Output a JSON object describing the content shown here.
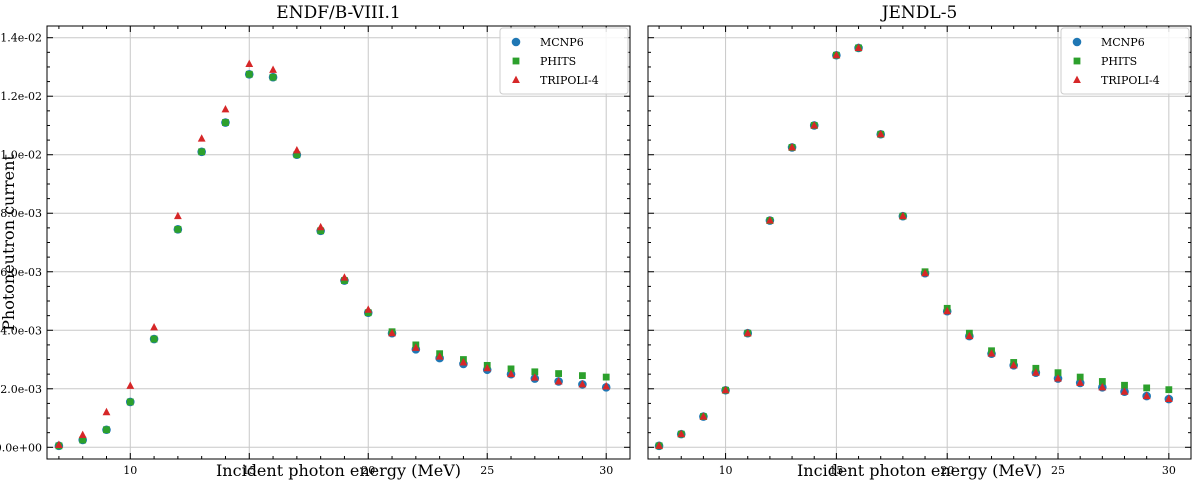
{
  "colors": {
    "MCNP6": "#1f77b4",
    "PHITS": "#2ca02c",
    "TRIPOLI-4": "#d62728"
  },
  "chart_data": [
    {
      "type": "scatter",
      "title": "ENDF/B-VIII.1",
      "xlabel": "Incident photon energy (MeV)",
      "ylabel": "Photoneutron current",
      "xlim": [
        6.5,
        31
      ],
      "ylim": [
        -0.0004,
        0.0144
      ],
      "xticks": [
        10,
        15,
        20,
        25,
        30
      ],
      "xtick_labels": [
        "10",
        "15",
        "20",
        "25",
        "30"
      ],
      "yticks": [
        0,
        0.002,
        0.004,
        0.006,
        0.008,
        0.01,
        0.012,
        0.014
      ],
      "ytick_labels": [
        "0.0e+00",
        "2.0e-03",
        "4.0e-03",
        "6.0e-03",
        "8.0e-03",
        "1.0e-02",
        "1.2e-02",
        "1.4e-02"
      ],
      "grid": true,
      "legend": "top-right",
      "x": [
        7,
        8,
        9,
        10,
        11,
        12,
        13,
        14,
        15,
        16,
        17,
        18,
        19,
        20,
        21,
        22,
        23,
        24,
        25,
        26,
        27,
        28,
        29,
        30
      ],
      "series": [
        {
          "name": "MCNP6",
          "marker": "circle",
          "values": [
            5e-05,
            0.00025,
            0.0006,
            0.00155,
            0.0037,
            0.00745,
            0.0101,
            0.0111,
            0.01275,
            0.01265,
            0.01,
            0.0074,
            0.0057,
            0.0046,
            0.0039,
            0.00335,
            0.00305,
            0.00285,
            0.00265,
            0.0025,
            0.00235,
            0.00225,
            0.00215,
            0.00205
          ]
        },
        {
          "name": "PHITS",
          "marker": "square",
          "values": [
            5e-05,
            0.00025,
            0.0006,
            0.00155,
            0.0037,
            0.00745,
            0.0101,
            0.0111,
            0.01275,
            0.01265,
            0.01,
            0.0074,
            0.0057,
            0.0046,
            0.00395,
            0.0035,
            0.0032,
            0.003,
            0.0028,
            0.00268,
            0.00258,
            0.00252,
            0.00245,
            0.0024
          ]
        },
        {
          "name": "TRIPOLI-4",
          "marker": "triangle",
          "values": [
            8e-05,
            0.00042,
            0.0012,
            0.0021,
            0.0041,
            0.0079,
            0.01055,
            0.01155,
            0.0131,
            0.0129,
            0.01015,
            0.00752,
            0.0058,
            0.0047,
            0.0039,
            0.0034,
            0.0031,
            0.0029,
            0.0027,
            0.0025,
            0.00238,
            0.00225,
            0.00215,
            0.00208
          ]
        }
      ]
    },
    {
      "type": "scatter",
      "title": "JENDL-5",
      "xlabel": "Incident photon energy (MeV)",
      "ylabel": "",
      "xlim": [
        6.5,
        31
      ],
      "ylim": [
        -0.0004,
        0.0144
      ],
      "xticks": [
        10,
        15,
        20,
        25,
        30
      ],
      "xtick_labels": [
        "10",
        "15",
        "20",
        "25",
        "30"
      ],
      "yticks": [
        0,
        0.002,
        0.004,
        0.006,
        0.008,
        0.01,
        0.012,
        0.014
      ],
      "ytick_labels": [],
      "grid": true,
      "legend": "top-right",
      "x": [
        7,
        8,
        9,
        10,
        11,
        12,
        13,
        14,
        15,
        16,
        17,
        18,
        19,
        20,
        21,
        22,
        23,
        24,
        25,
        26,
        27,
        28,
        29,
        30
      ],
      "series": [
        {
          "name": "MCNP6",
          "marker": "circle",
          "values": [
            5e-05,
            0.00045,
            0.00105,
            0.00195,
            0.0039,
            0.00775,
            0.01025,
            0.011,
            0.0134,
            0.01365,
            0.0107,
            0.0079,
            0.00595,
            0.00465,
            0.0038,
            0.0032,
            0.0028,
            0.00255,
            0.00235,
            0.0022,
            0.00205,
            0.0019,
            0.00175,
            0.00165
          ]
        },
        {
          "name": "PHITS",
          "marker": "square",
          "values": [
            5e-05,
            0.00045,
            0.00105,
            0.00195,
            0.0039,
            0.00775,
            0.01025,
            0.011,
            0.0134,
            0.01365,
            0.0107,
            0.0079,
            0.006,
            0.00475,
            0.0039,
            0.0033,
            0.0029,
            0.0027,
            0.00255,
            0.0024,
            0.00225,
            0.00212,
            0.00203,
            0.00197
          ]
        },
        {
          "name": "TRIPOLI-4",
          "marker": "triangle",
          "values": [
            5e-05,
            0.00045,
            0.00105,
            0.00195,
            0.0039,
            0.00775,
            0.01025,
            0.011,
            0.0134,
            0.01365,
            0.0107,
            0.0079,
            0.00595,
            0.00465,
            0.0038,
            0.0032,
            0.0028,
            0.00255,
            0.00235,
            0.0022,
            0.00205,
            0.0019,
            0.00175,
            0.00165
          ]
        }
      ]
    }
  ]
}
